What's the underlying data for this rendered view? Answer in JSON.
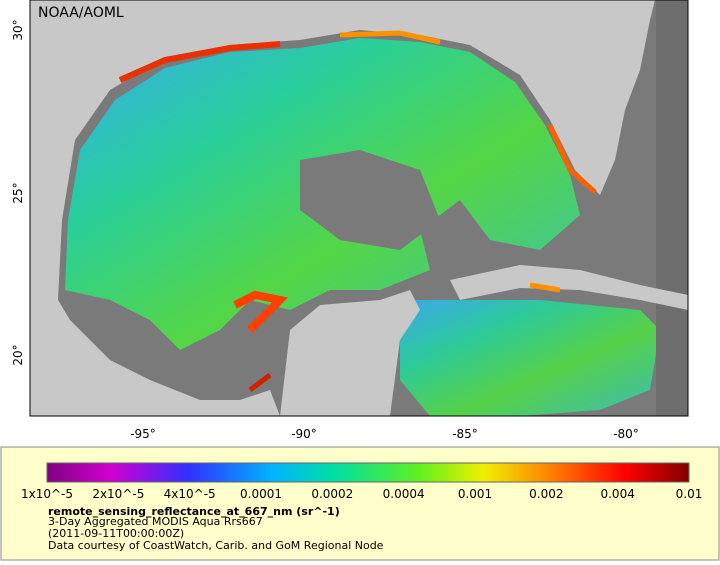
{
  "map": {
    "credit": "NOAA/AOML",
    "lat_labels": [
      "30°",
      "25°",
      "20°"
    ],
    "lon_labels": [
      "-95°",
      "-90°",
      "-85°",
      "-80°"
    ],
    "colorbar_labels": [
      "1x10^-5",
      "2x10^-5",
      "4x10^-5",
      "0.0001",
      "0.0002",
      "0.0004",
      "0.001",
      "0.002",
      "0.004",
      "0.01"
    ],
    "variable": "remote_sensing_reflectance_at_667_nm (sr^-1)",
    "description": [
      "3-Day Aggregated MODIS Aqua Rrs667",
      "(2011-09-11T00:00:00Z)",
      "Data courtesy of CoastWatch, Carib. and GoM Regional Node"
    ]
  }
}
